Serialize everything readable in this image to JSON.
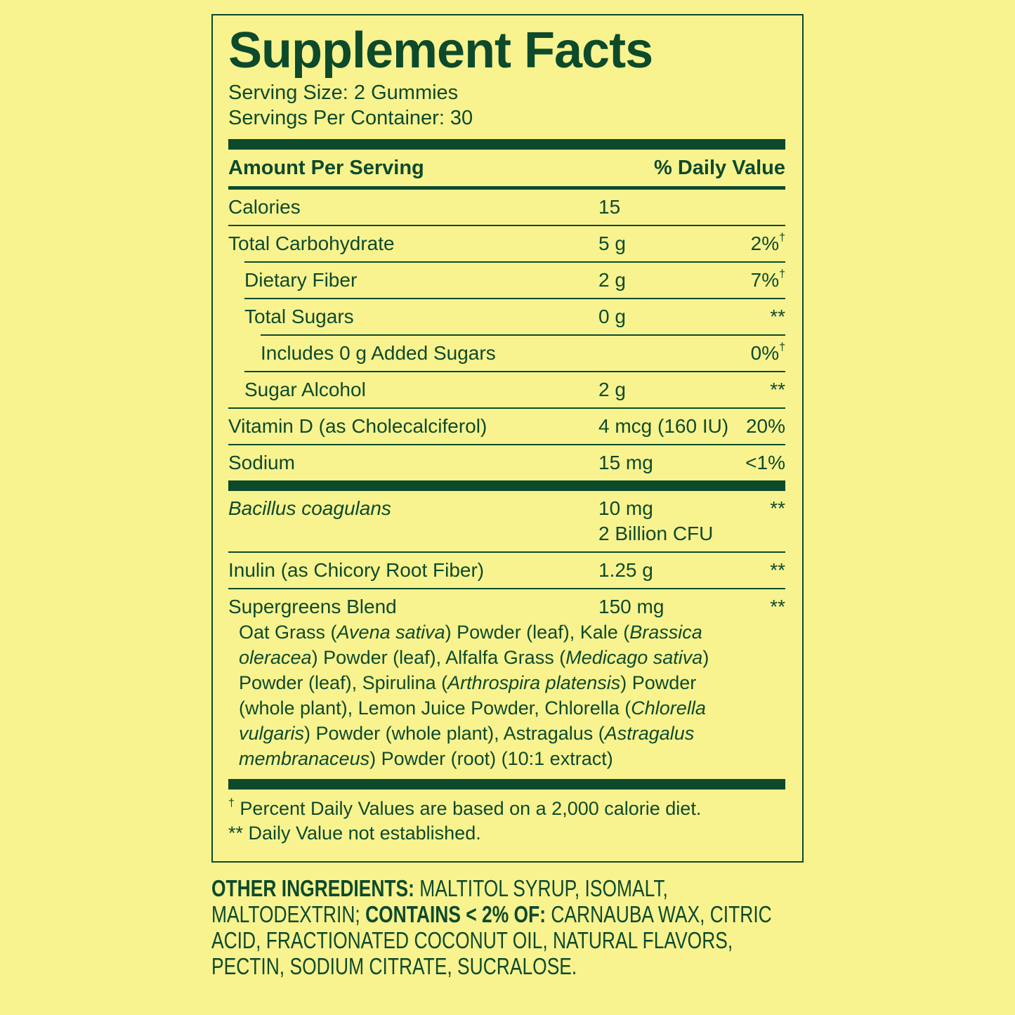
{
  "title": "Supplement Facts",
  "serving_size": "Serving Size: 2 Gummies",
  "servings_per_container": "Servings Per Container: 30",
  "columns": {
    "amount": "Amount Per Serving",
    "daily_value": "% Daily Value"
  },
  "sections": [
    {
      "rows": [
        {
          "name": "Calories",
          "amount": [
            "15"
          ]
        },
        {
          "name": "Total Carbohydrate",
          "amount": [
            "5 g"
          ],
          "daily_value": "2%",
          "daily_value_note": "†",
          "sub_rows": [
            {
              "name": "Dietary Fiber",
              "amount": [
                "2 g"
              ],
              "daily_value": "7%",
              "daily_value_note": "†"
            },
            {
              "name": "Total Sugars",
              "amount": [
                "0 g"
              ],
              "daily_value": "**",
              "sub_rows": [
                {
                  "name": "Includes 0 g Added Sugars",
                  "daily_value": "0%",
                  "daily_value_note": "†"
                }
              ]
            },
            {
              "name": "Sugar Alcohol",
              "amount": [
                "2 g"
              ],
              "daily_value": "**"
            }
          ]
        },
        {
          "name": "Vitamin D (as Cholecalciferol)",
          "amount": [
            "4 mcg (160 IU)"
          ],
          "daily_value": "20%"
        },
        {
          "name": "Sodium",
          "amount": [
            "15 mg"
          ],
          "daily_value": "<1%"
        }
      ]
    },
    {
      "rows": [
        {
          "name": "Bacillus coagulans",
          "name_style": "italic",
          "amount": [
            "10 mg",
            "2 Billion CFU"
          ],
          "daily_value": "**"
        },
        {
          "name": "Inulin (as Chicory Root Fiber)",
          "amount": [
            "1.25 g"
          ],
          "daily_value": "**"
        },
        {
          "name": "Supergreens Blend",
          "amount": [
            "150 mg"
          ],
          "daily_value": "**",
          "description": [
            {
              "text": "Oat Grass ("
            },
            {
              "text": "Avena sativa",
              "italic": true
            },
            {
              "text": ") Powder (leaf), Kale ("
            },
            {
              "text": "Brassica oleracea",
              "italic": true
            },
            {
              "text": ") Powder (leaf), Alfalfa Grass ("
            },
            {
              "text": "Medicago sativa",
              "italic": true
            },
            {
              "text": ") Powder (leaf), Spirulina ("
            },
            {
              "text": "Arthrospira platensis",
              "italic": true
            },
            {
              "text": ") Powder (whole plant), Lemon Juice Powder, Chlorella ("
            },
            {
              "text": "Chlorella vulgaris",
              "italic": true
            },
            {
              "text": ") Powder (whole plant), Astragalus ("
            },
            {
              "text": "Astragalus membranaceus",
              "italic": true
            },
            {
              "text": ") Powder (root) (10:1 extract)"
            }
          ]
        }
      ]
    }
  ],
  "footnotes": [
    {
      "mark": "†",
      "text": "Percent Daily Values are based on a 2,000 calorie diet."
    },
    {
      "text": "** Daily Value not established."
    }
  ],
  "other_ingredients": [
    {
      "text": "OTHER INGREDIENTS:",
      "bold": true
    },
    {
      "text": " MALTITOL SYRUP, ISOMALT, MALTODEXTRIN; "
    },
    {
      "text": "CONTAINS < 2% OF:",
      "bold": true
    },
    {
      "text": " CARNAUBA WAX, CITRIC ACID, FRACTIONATED COCONUT OIL, NATURAL FLAVORS, PECTIN, SODIUM CITRATE, SUCRALOSE."
    }
  ]
}
